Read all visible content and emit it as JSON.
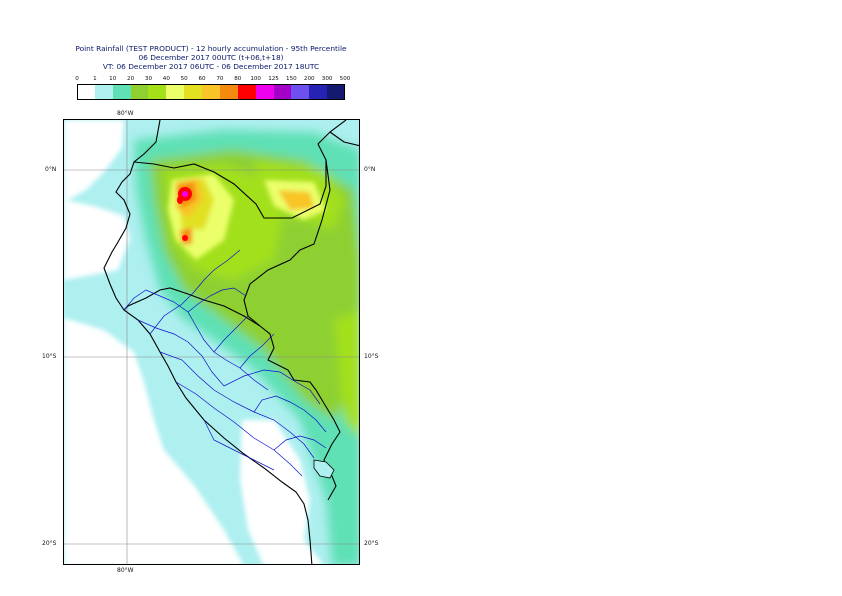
{
  "title": {
    "line1": "Point Rainfall (TEST PRODUCT) - 12 hourly accumulation - 95th Percentile",
    "line2": "06 December 2017 00UTC (t+06,t+18)",
    "line3": "VT: 06 December 2017 06UTC - 06 December 2017 18UTC"
  },
  "legend": {
    "labels": [
      "0",
      "1",
      "10",
      "20",
      "30",
      "40",
      "50",
      "60",
      "70",
      "80",
      "100",
      "125",
      "150",
      "200",
      "300",
      "500"
    ],
    "colors": [
      "#ffffff",
      "#aeeff0",
      "#5fe0b5",
      "#8ed030",
      "#a3e01a",
      "#eaff6a",
      "#e2e020",
      "#f8c428",
      "#f58a10",
      "#ff0000",
      "#ee00ee",
      "#a400c8",
      "#6e50f0",
      "#2822b4",
      "#141a70"
    ]
  },
  "map": {
    "lon_labels": {
      "top": "80°W",
      "bottom": "80°W"
    },
    "lat_labels": [
      {
        "text": "0°N"
      },
      {
        "text": "10°S"
      },
      {
        "text": "20°S"
      }
    ]
  }
}
